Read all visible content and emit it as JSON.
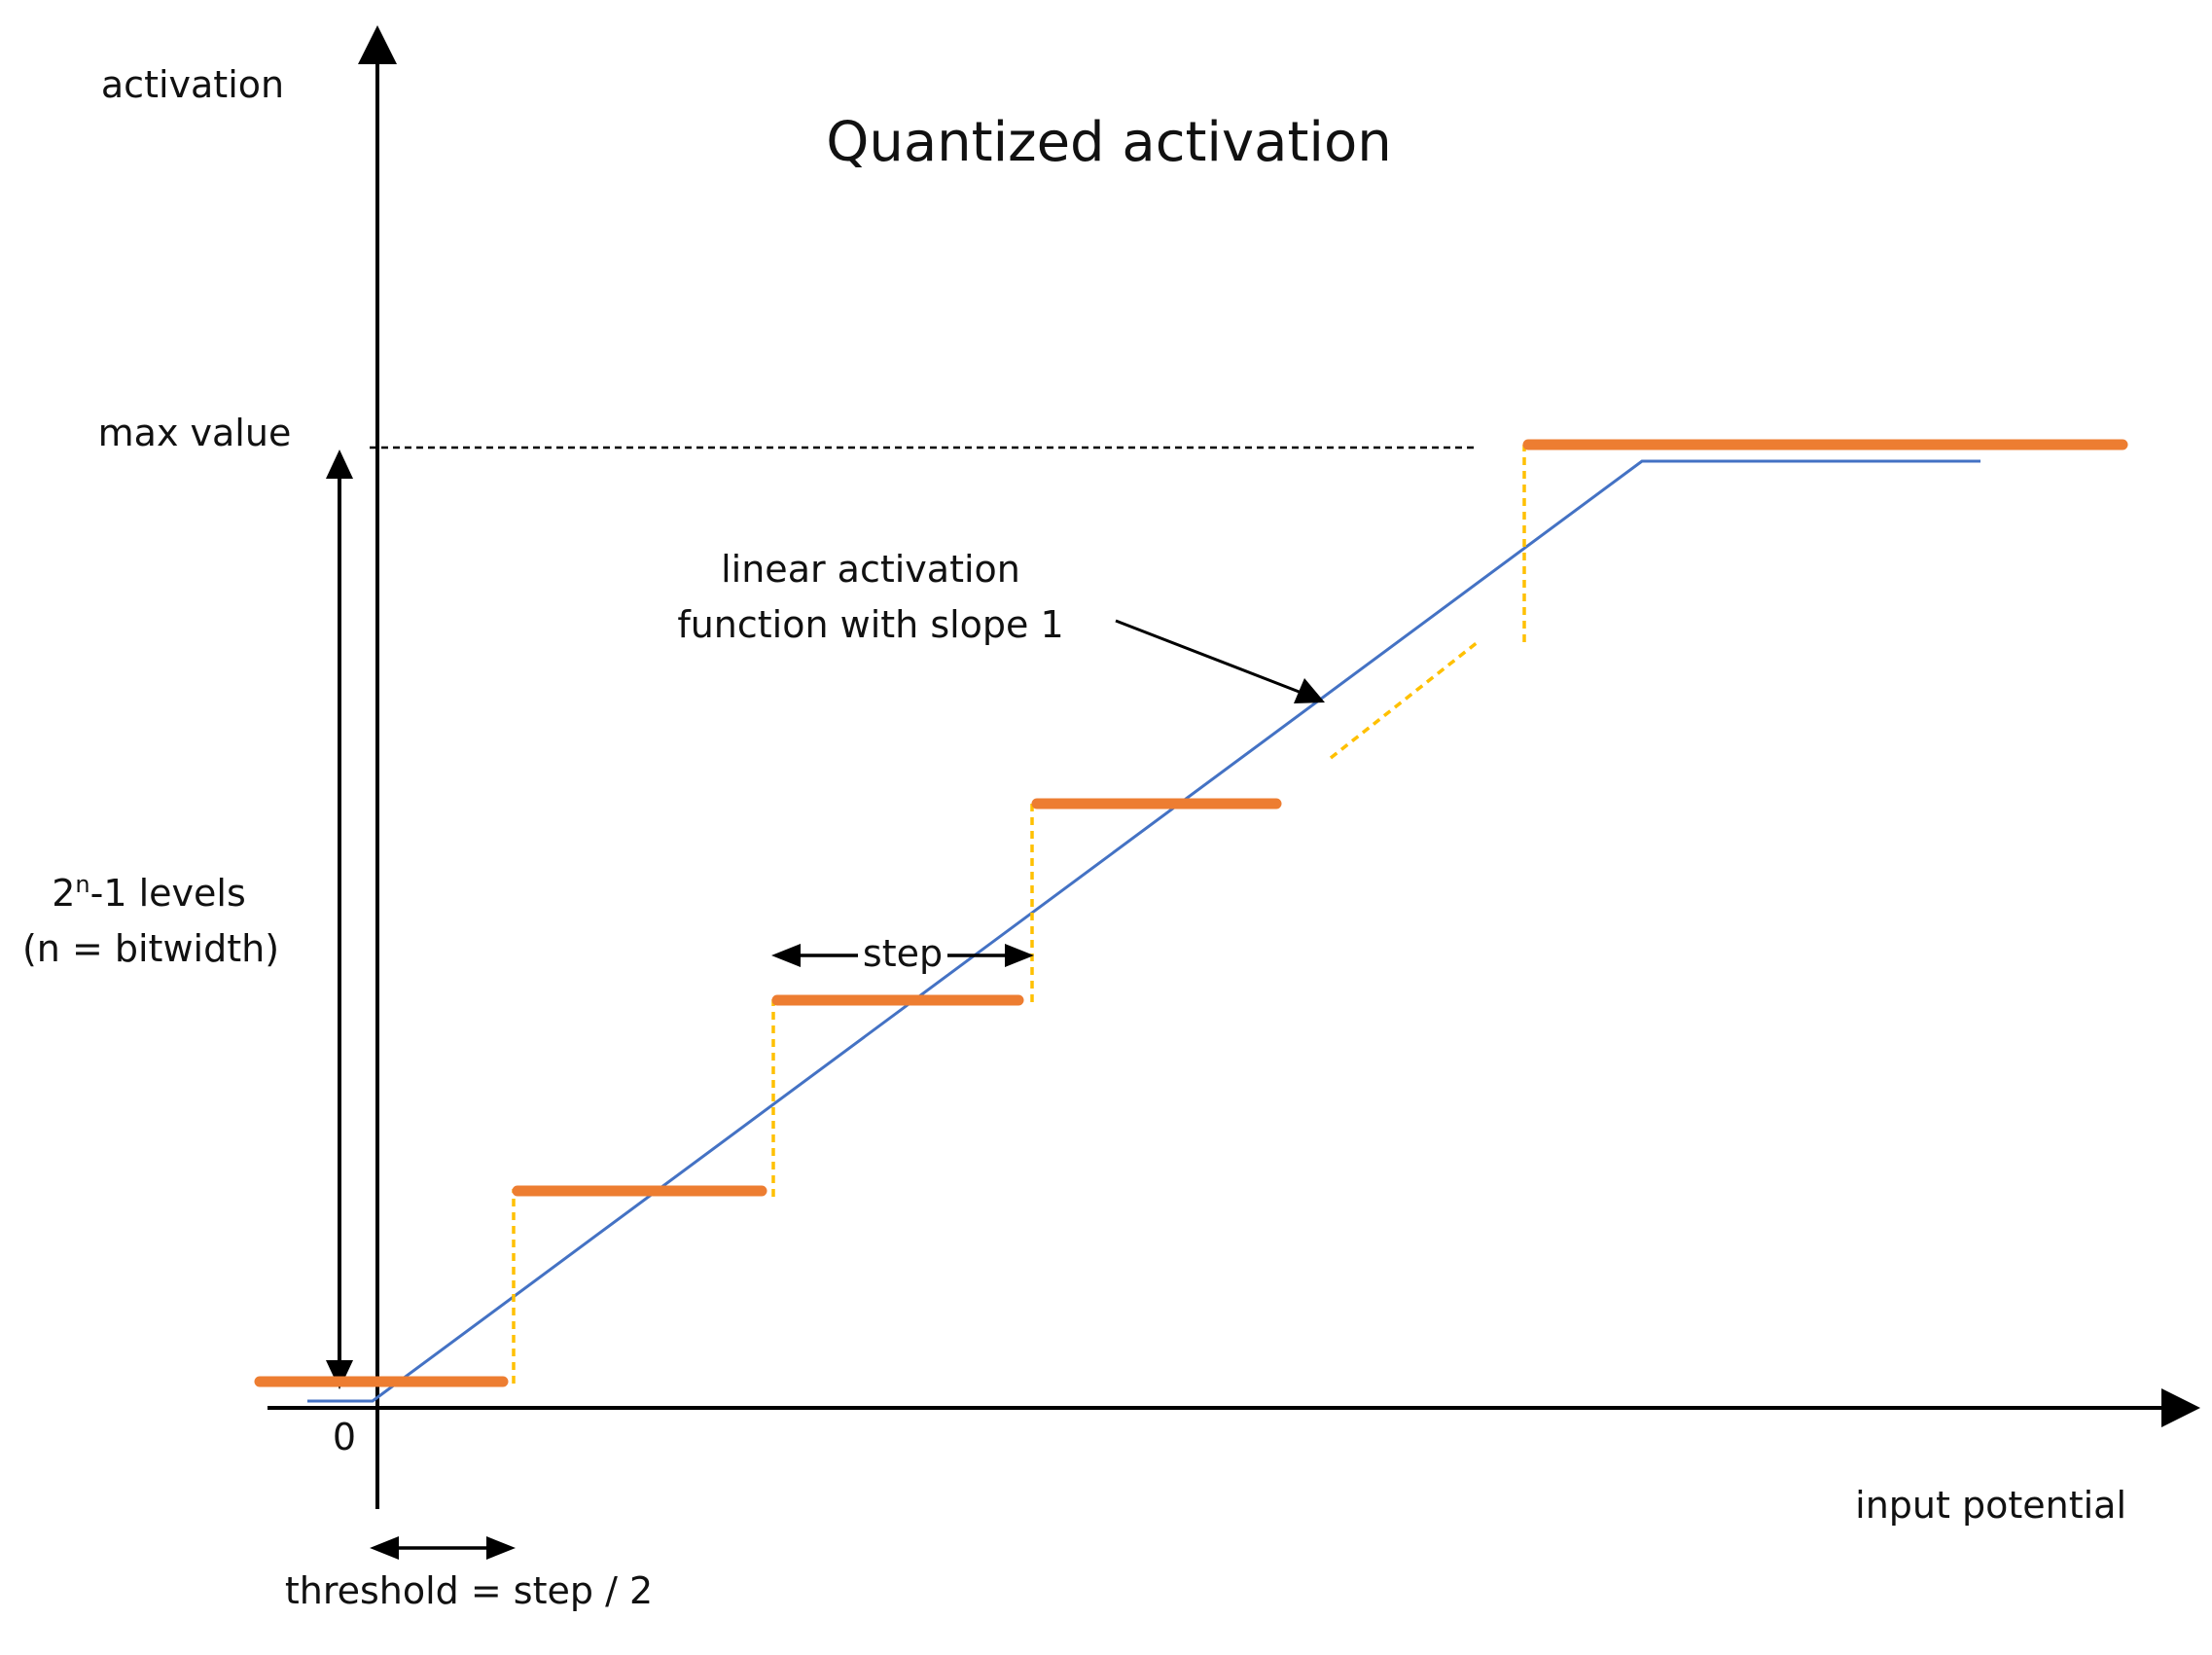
{
  "title": "Quantized activation",
  "y_axis_label": "activation",
  "x_axis_label": "input potential",
  "origin_label": "0",
  "max_value_label": "max value",
  "levels_label": {
    "base": "2",
    "superscript": "n",
    "rest": "-1 levels",
    "line2": "(n = bitwidth)"
  },
  "annotation": {
    "line1": "linear activation",
    "line2": "function with slope 1"
  },
  "step_label": "step",
  "threshold_label": "threshold = step / 2",
  "colors": {
    "axis": "#000000",
    "quantized_steps": "#ED7D31",
    "transitions": "#FFC000",
    "linear": "#4472C4",
    "max_line": "#000000"
  }
}
